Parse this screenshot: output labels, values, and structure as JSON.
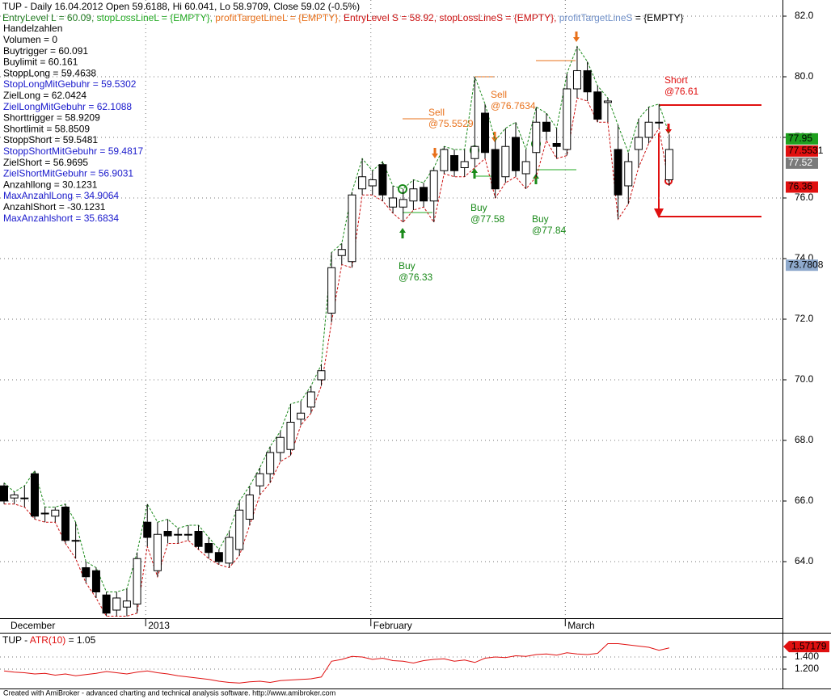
{
  "chart_data": {
    "type": "candlestick",
    "header": [
      [
        {
          "text": "TUP - Daily 16.04.2012 Open 59.6188, Hi 60.041, Lo 58.9709, Close 59.02 (-0.5%)",
          "color": "#000000"
        }
      ],
      [
        {
          "text": "EntryLevel L = 60.09, ",
          "color": "#1f7a1f"
        },
        {
          "text": "stopLossLineL = {EMPTY}, ",
          "color": "#22aa22"
        },
        {
          "text": "profitTargetLineL = {EMPTY}, ",
          "color": "#e8701a"
        },
        {
          "text": "EntryLevel S = 58.92, ",
          "color": "#cc1111"
        },
        {
          "text": "stopLossLineS = {EMPTY}, ",
          "color": "#cc1111"
        },
        {
          "text": "profitTargetLineS",
          "color": "#6f8fc8"
        },
        {
          "text": " = {EMPTY}",
          "color": "#000000"
        }
      ]
    ],
    "indicators": [
      {
        "text": "Handelzahlen",
        "color": "#000000"
      },
      {
        "text": "Volumen = 0",
        "color": "#000000"
      },
      {
        "text": "Buytrigger = 60.091",
        "color": "#000000"
      },
      {
        "text": "Buylimit = 60.161",
        "color": "#000000"
      },
      {
        "text": "StoppLong = 59.4638",
        "color": "#000000"
      },
      {
        "text": "StopLongMitGebuhr = 59.5302",
        "color": "#1a1acc"
      },
      {
        "text": "ZielLong = 62.0424",
        "color": "#000000"
      },
      {
        "text": "ZielLongMitGebuhr = 62.1088",
        "color": "#1a1acc"
      },
      {
        "text": "Shorttrigger = 58.9209",
        "color": "#000000"
      },
      {
        "text": "Shortlimit = 58.8509",
        "color": "#000000"
      },
      {
        "text": "StoppShort = 59.5481",
        "color": "#000000"
      },
      {
        "text": "StoppShortMitGebuhr = 59.4817",
        "color": "#1a1acc"
      },
      {
        "text": "ZielShort = 56.9695",
        "color": "#000000"
      },
      {
        "text": "ZielShortMitGebuhr = 56.9031",
        "color": "#1a1acc"
      },
      {
        "text": "Anzahllong = 30.1231",
        "color": "#000000"
      },
      {
        "text": "MaxAnzahlLong = 34.9064",
        "color": "#1a1acc"
      },
      {
        "text": "AnzahlShort = -30.1231",
        "color": "#000000"
      },
      {
        "text": "MaxAnzahlshort = 35.6834",
        "color": "#1a1acc"
      }
    ],
    "categories": [
      "December",
      null,
      null,
      null,
      null,
      null,
      null,
      null,
      null,
      null,
      null,
      null,
      null,
      null,
      "2013",
      null,
      null,
      null,
      null,
      null,
      null,
      null,
      null,
      null,
      null,
      null,
      null,
      null,
      null,
      null,
      null,
      null,
      null,
      null,
      null,
      null,
      "February",
      null,
      null,
      null,
      null,
      null,
      null,
      null,
      null,
      null,
      null,
      null,
      null,
      null,
      null,
      null,
      null,
      null,
      null,
      "March",
      null,
      null,
      null,
      null,
      null,
      null,
      null,
      null,
      null,
      null
    ],
    "open": [
      66.5,
      66.1,
      66.1,
      66.9,
      65.6,
      65.5,
      65.8,
      64.7,
      63.8,
      63.7,
      62.9,
      62.4,
      62.5,
      62.6,
      65.3,
      63.7,
      65.0,
      64.9,
      64.9,
      65.0,
      64.6,
      64.3,
      63.95,
      64.4,
      65.4,
      66.5,
      66.9,
      67.6,
      67.7,
      68.7,
      69.1,
      70.0,
      72.2,
      74.1,
      73.9,
      76.3,
      76.4,
      77.1,
      75.7,
      75.7,
      75.9,
      76.35,
      75.9,
      76.9,
      77.4,
      77.0,
      77.3,
      78.8,
      77.6,
      76.7,
      78.0,
      76.8,
      77.5,
      78.5,
      77.8,
      77.6,
      79.6,
      80.2,
      79.5,
      79.15,
      77.6,
      76.4,
      77.6,
      78.0,
      78.5,
      76.6
    ],
    "high": [
      66.6,
      66.3,
      66.5,
      67.0,
      65.8,
      65.8,
      65.9,
      65.3,
      64.0,
      63.8,
      63.0,
      63.0,
      63.1,
      64.3,
      65.9,
      65.3,
      65.4,
      65.1,
      65.2,
      65.2,
      64.8,
      64.4,
      65.0,
      66.0,
      66.5,
      67.1,
      67.8,
      68.3,
      69.2,
      69.3,
      69.8,
      70.5,
      74.2,
      74.5,
      76.2,
      77.3,
      76.9,
      77.2,
      76.4,
      76.3,
      76.6,
      76.5,
      77.0,
      77.7,
      77.6,
      77.6,
      80.0,
      79.1,
      77.9,
      78.3,
      78.5,
      77.6,
      79.0,
      78.8,
      78.3,
      80.1,
      81.0,
      80.5,
      79.7,
      79.3,
      78.4,
      77.5,
      78.6,
      79.0,
      79.1,
      78.1
    ],
    "low": [
      65.9,
      65.9,
      65.8,
      65.4,
      65.3,
      65.3,
      64.6,
      64.1,
      63.3,
      62.8,
      62.2,
      62.2,
      62.2,
      62.3,
      64.5,
      63.5,
      64.6,
      64.6,
      64.7,
      64.4,
      64.1,
      63.9,
      63.8,
      64.2,
      65.2,
      66.2,
      66.6,
      67.3,
      67.5,
      68.5,
      68.9,
      69.8,
      71.9,
      73.8,
      73.7,
      76.1,
      76.1,
      75.9,
      75.5,
      75.2,
      75.6,
      75.7,
      75.2,
      76.8,
      76.7,
      76.7,
      77.0,
      77.3,
      76.0,
      76.5,
      76.7,
      76.3,
      76.7,
      77.9,
      77.3,
      77.4,
      79.3,
      79.2,
      78.5,
      78.5,
      75.3,
      75.8,
      77.0,
      77.8,
      78.3,
      76.4
    ],
    "close": [
      66.0,
      66.2,
      66.1,
      65.5,
      65.6,
      65.7,
      64.7,
      64.7,
      63.5,
      63.0,
      62.3,
      62.8,
      62.7,
      64.1,
      64.8,
      64.9,
      64.85,
      64.9,
      64.9,
      64.5,
      64.3,
      64.0,
      64.8,
      65.7,
      66.2,
      66.9,
      67.6,
      68.1,
      68.6,
      68.9,
      69.6,
      70.3,
      73.7,
      74.3,
      76.1,
      76.7,
      76.6,
      76.1,
      76.0,
      75.95,
      76.3,
      75.9,
      76.9,
      77.6,
      76.9,
      77.2,
      77.7,
      77.5,
      76.3,
      77.7,
      76.9,
      77.2,
      78.5,
      78.2,
      77.7,
      79.6,
      80.2,
      79.5,
      78.6,
      79.2,
      76.1,
      77.2,
      78.0,
      78.5,
      78.5,
      77.6
    ],
    "ylim": [
      62.133,
      82.533
    ],
    "yticks": [
      {
        "value": 64,
        "label": "64.0"
      },
      {
        "value": 66,
        "label": "66.0"
      },
      {
        "value": 68,
        "label": "68.0"
      },
      {
        "value": 70,
        "label": "70.0"
      },
      {
        "value": 72,
        "label": "72.0"
      },
      {
        "value": 74,
        "label": "74.0"
      },
      {
        "value": 76,
        "label": "76.0"
      },
      {
        "value": 78,
        "label": "78.0"
      },
      {
        "value": 80,
        "label": "80.0"
      },
      {
        "value": 82,
        "label": "82.0"
      }
    ],
    "price_tags": [
      {
        "value": 77.95,
        "color": "#1fa01f"
      },
      {
        "value": 77.5531,
        "color": "#e01010"
      },
      {
        "value": 77.52,
        "color": "#7a7a7a"
      },
      {
        "value": 76.36,
        "color": "#e01010"
      },
      {
        "value": 73.7808,
        "color": "#8ea9cc"
      }
    ],
    "signals": [
      {
        "lines": [
          "Buy",
          "@76.33"
        ],
        "color": "#1a8a1a"
      },
      {
        "lines": [
          "Sell",
          "@75.5529"
        ],
        "color": "#e8701a"
      },
      {
        "lines": [
          "Buy",
          "@77.58"
        ],
        "color": "#1a8a1a"
      },
      {
        "lines": [
          "Sell",
          "@76.7634"
        ],
        "color": "#e8701a"
      },
      {
        "lines": [
          "Buy",
          "@77.84"
        ],
        "color": "#1a8a1a"
      },
      {
        "lines": [
          "Short",
          "@76.61"
        ],
        "color": "#e01010"
      }
    ],
    "atr": {
      "title": [
        {
          "text": "TUP - ",
          "color": "#000000"
        },
        {
          "text": "ATR(10)",
          "color": "#e01010"
        },
        {
          "text": " = 1.05",
          "color": "#000000"
        }
      ],
      "color": "#e01010",
      "values": [
        1.17,
        1.15,
        1.14,
        1.12,
        1.13,
        1.1,
        1.12,
        1.09,
        1.11,
        1.13,
        1.16,
        1.14,
        1.12,
        1.15,
        1.17,
        1.14,
        1.12,
        1.09,
        1.07,
        1.05,
        1.03,
        1.0,
        0.98,
        0.97,
        0.99,
        1.0,
        0.98,
        1.01,
        1.02,
        1.03,
        1.04,
        1.07,
        1.33,
        1.36,
        1.41,
        1.4,
        1.36,
        1.38,
        1.34,
        1.33,
        1.3,
        1.34,
        1.36,
        1.37,
        1.33,
        1.35,
        1.31,
        1.38,
        1.4,
        1.39,
        1.42,
        1.41,
        1.44,
        1.45,
        1.43,
        1.47,
        1.45,
        1.44,
        1.46,
        1.62,
        1.62,
        1.6,
        1.58,
        1.56,
        1.51,
        1.55
      ],
      "ylim": [
        0.907,
        1.747
      ],
      "yticks": [
        {
          "value": 1.2,
          "label": "1.200"
        },
        {
          "value": 1.4,
          "label": "1.400"
        }
      ],
      "tag": 1.57179
    },
    "footer": "Created with AmiBroker - advanced charting and technical analysis software. http://www.amibroker.com"
  }
}
